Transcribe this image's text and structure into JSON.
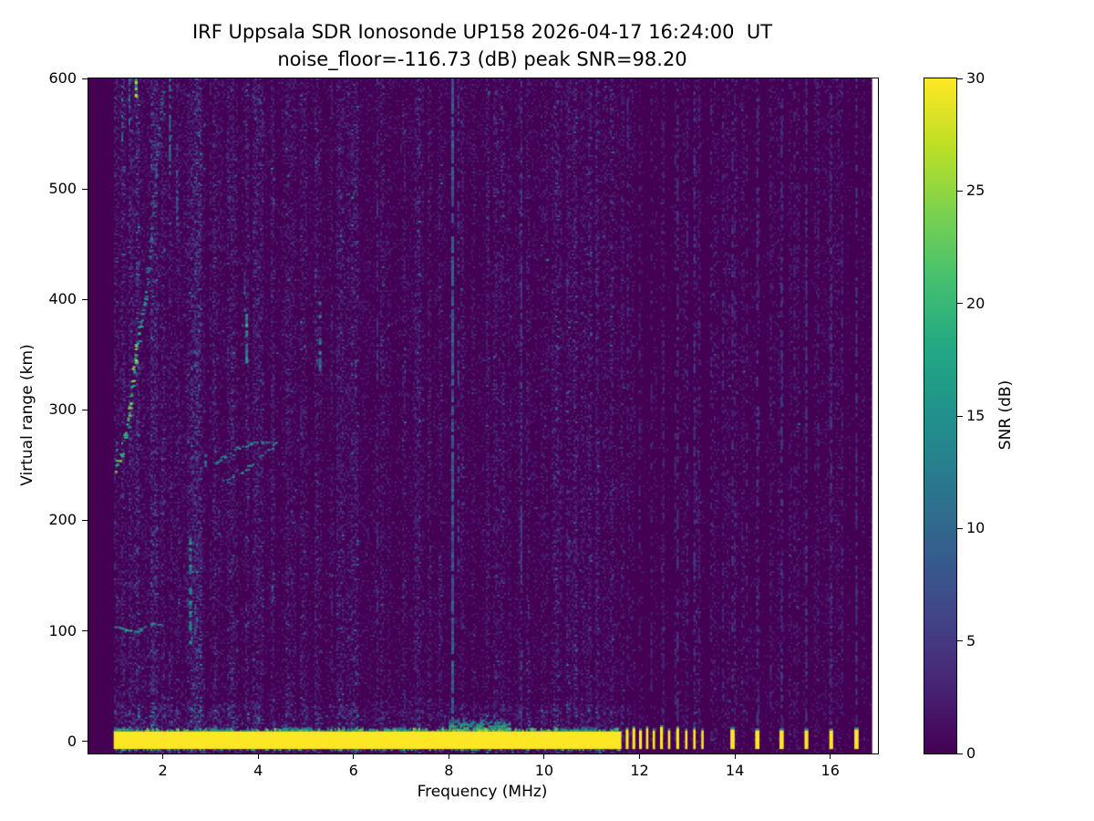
{
  "chart_data": {
    "type": "heatmap",
    "title": "IRF Uppsala SDR Ionosonde UP158 2026-04-17 16:24:00  UT",
    "subtitle": "noise_floor=-116.73 (dB) peak SNR=98.20",
    "station": "UP158",
    "timestamp_ut": "2026-04-17 16:24:00",
    "noise_floor_db": -116.73,
    "peak_snr_db": 98.2,
    "xlabel": "Frequency (MHz)",
    "ylabel": "Virtual range (km)",
    "xlim": [
      0.44,
      17.0
    ],
    "ylim": [
      -11,
      600
    ],
    "xticks": [
      2,
      4,
      6,
      8,
      10,
      12,
      14,
      16
    ],
    "yticks": [
      0,
      100,
      200,
      300,
      400,
      500,
      600
    ],
    "grid": false,
    "colorbar": {
      "label": "SNR (dB)",
      "min": 0,
      "max": 30,
      "ticks": [
        0,
        5,
        10,
        15,
        20,
        25,
        30
      ],
      "colormap": "viridis"
    },
    "colormap_stops": [
      [
        0.0,
        "#440154"
      ],
      [
        0.1,
        "#482475"
      ],
      [
        0.2,
        "#414487"
      ],
      [
        0.3,
        "#355f8d"
      ],
      [
        0.4,
        "#2a788e"
      ],
      [
        0.5,
        "#21918c"
      ],
      [
        0.6,
        "#22a884"
      ],
      [
        0.7,
        "#44bf70"
      ],
      [
        0.8,
        "#7ad151"
      ],
      [
        0.9,
        "#bddf26"
      ],
      [
        1.0,
        "#fde725"
      ]
    ],
    "data_extent": {
      "f_start": 0.97,
      "f_end": 16.88
    },
    "background_snr": 0,
    "noise": {
      "x_step": 2,
      "y_step": 2,
      "col_block": 4,
      "mean_snr": 0.9,
      "threshold": 1.0,
      "low_freq_boost": 1.5,
      "low_freq_cutoff": 2.8,
      "high_freq_cutoff": 11.65,
      "high_freq_factor": 0.55,
      "near_band_boost": 1.7,
      "near_band_km": 35,
      "max_snr": 13,
      "seed": 42
    },
    "ground_band": {
      "f_start": 0.97,
      "f_end": 11.62,
      "km_bottom": -7,
      "km_top": 9,
      "snr": 30
    },
    "ground_halos": [
      {
        "f_start": 8.0,
        "f_end": 9.3,
        "km_top": 21,
        "snr": 26
      },
      {
        "f_start": 4.4,
        "f_end": 5.1,
        "km_top": 13,
        "snr": 22
      },
      {
        "f_start": 6.6,
        "f_end": 7.2,
        "km_top": 12,
        "snr": 20
      },
      {
        "f_start": 2.9,
        "f_end": 3.4,
        "km_top": 12,
        "snr": 18
      },
      {
        "f_start": 10.35,
        "f_end": 11.05,
        "km_top": 12,
        "snr": 18
      },
      {
        "f_start": 0.97,
        "f_end": 1.6,
        "km_top": 12,
        "snr": 18
      }
    ],
    "pulse_km_bottom": -7,
    "pulse_snr": 30,
    "ground_pulses": [
      {
        "f": 11.74,
        "width": 0.06,
        "km_top": 11
      },
      {
        "f": 11.88,
        "width": 0.06,
        "km_top": 12
      },
      {
        "f": 12.02,
        "width": 0.06,
        "km_top": 10
      },
      {
        "f": 12.16,
        "width": 0.05,
        "km_top": 12
      },
      {
        "f": 12.3,
        "width": 0.05,
        "km_top": 10
      },
      {
        "f": 12.46,
        "width": 0.06,
        "km_top": 13
      },
      {
        "f": 12.62,
        "width": 0.05,
        "km_top": 10
      },
      {
        "f": 12.8,
        "width": 0.06,
        "km_top": 12
      },
      {
        "f": 12.98,
        "width": 0.05,
        "km_top": 10
      },
      {
        "f": 13.15,
        "width": 0.05,
        "km_top": 11
      },
      {
        "f": 13.32,
        "width": 0.05,
        "km_top": 10
      },
      {
        "f": 13.95,
        "width": 0.09,
        "km_top": 11
      },
      {
        "f": 14.47,
        "width": 0.09,
        "km_top": 10
      },
      {
        "f": 14.98,
        "width": 0.09,
        "km_top": 10
      },
      {
        "f": 15.5,
        "width": 0.08,
        "km_top": 10
      },
      {
        "f": 16.02,
        "width": 0.08,
        "km_top": 10
      },
      {
        "f": 16.55,
        "width": 0.09,
        "km_top": 11
      }
    ],
    "traces": [
      {
        "name": "F-layer echo",
        "dash_prob": 0.75,
        "spread_km": [
          8,
          8,
          9,
          10,
          12,
          14,
          14,
          13,
          10,
          8,
          7,
          7,
          6,
          6,
          6,
          6,
          6,
          6
        ],
        "points": [
          [
            0.98,
            248,
            20
          ],
          [
            1.04,
            253,
            21
          ],
          [
            1.1,
            260,
            20
          ],
          [
            1.17,
            270,
            19
          ],
          [
            1.24,
            285,
            20
          ],
          [
            1.3,
            306,
            22
          ],
          [
            1.36,
            330,
            22
          ],
          [
            1.42,
            352,
            21
          ],
          [
            1.48,
            368,
            18
          ],
          [
            1.54,
            382,
            16
          ],
          [
            1.6,
            398,
            14
          ],
          [
            1.66,
            418,
            13
          ],
          [
            1.72,
            445,
            11
          ],
          [
            1.78,
            478,
            10
          ],
          [
            1.84,
            515,
            9
          ],
          [
            1.9,
            550,
            9
          ],
          [
            1.95,
            578,
            8
          ],
          [
            1.99,
            598,
            8
          ]
        ]
      },
      {
        "name": "Es upper arc",
        "dash_prob": 0.7,
        "spread_km": 3,
        "points": [
          [
            3.08,
            252,
            12
          ],
          [
            3.25,
            258,
            13
          ],
          [
            3.45,
            264,
            14
          ],
          [
            3.65,
            268,
            14
          ],
          [
            3.85,
            270,
            13
          ],
          [
            4.05,
            271,
            13
          ],
          [
            4.25,
            271,
            12
          ],
          [
            4.4,
            270,
            12
          ]
        ]
      },
      {
        "name": "Es lower arc",
        "dash_prob": 0.7,
        "spread_km": 3,
        "points": [
          [
            3.2,
            236,
            12
          ],
          [
            3.38,
            238,
            13
          ],
          [
            3.55,
            242,
            13
          ],
          [
            3.75,
            248,
            13
          ],
          [
            3.95,
            256,
            13
          ],
          [
            4.15,
            263,
            12
          ],
          [
            4.35,
            268,
            12
          ]
        ]
      },
      {
        "name": "Es tail",
        "dash_prob": 0.45,
        "spread_km": 2.5,
        "points": [
          [
            4.4,
            270,
            10
          ],
          [
            4.6,
            272,
            9
          ],
          [
            4.8,
            274,
            9
          ],
          [
            4.95,
            275,
            8
          ]
        ]
      },
      {
        "name": "Es layer 105 km",
        "dash_prob": 0.8,
        "spread_km": 2.5,
        "points": [
          [
            1.0,
            104,
            14
          ],
          [
            1.12,
            103,
            14
          ],
          [
            1.25,
            100,
            15
          ],
          [
            1.38,
            99,
            14
          ],
          [
            1.52,
            102,
            14
          ],
          [
            1.66,
            106,
            13
          ],
          [
            1.8,
            107,
            13
          ],
          [
            1.95,
            107,
            12
          ]
        ]
      }
    ],
    "rfi_columns": [
      {
        "f": 1.15,
        "km0": 540,
        "km1": 600,
        "snr": 11,
        "prob": 0.55,
        "w": 2
      },
      {
        "f": 1.3,
        "km0": 555,
        "km1": 600,
        "snr": 9,
        "prob": 0.5,
        "w": 2
      },
      {
        "f": 1.44,
        "km0": 583,
        "km1": 600,
        "snr": 22,
        "prob": 0.85,
        "w": 3
      },
      {
        "f": 2.15,
        "km0": 510,
        "km1": 600,
        "snr": 10,
        "prob": 0.5,
        "w": 2
      },
      {
        "f": 2.3,
        "km0": 460,
        "km1": 545,
        "snr": 9,
        "prob": 0.45,
        "w": 2
      },
      {
        "f": 2.58,
        "km0": 88,
        "km1": 182,
        "snr": 13,
        "prob": 0.6,
        "w": 3
      },
      {
        "f": 2.9,
        "km0": 248,
        "km1": 260,
        "snr": 12,
        "prob": 0.9,
        "w": 3
      },
      {
        "f": 3.0,
        "km0": 0,
        "km1": 600,
        "snr": 3.5,
        "prob": 0.26,
        "w": 2
      },
      {
        "f": 3.76,
        "km0": 342,
        "km1": 386,
        "snr": 15,
        "prob": 0.75,
        "w": 3
      },
      {
        "f": 3.72,
        "km0": 386,
        "km1": 428,
        "snr": 8,
        "prob": 0.4,
        "w": 2
      },
      {
        "f": 4.3,
        "km0": 120,
        "km1": 146,
        "snr": 10,
        "prob": 0.55,
        "w": 2
      },
      {
        "f": 5.3,
        "km0": 335,
        "km1": 400,
        "snr": 12,
        "prob": 0.6,
        "w": 3
      },
      {
        "f": 5.55,
        "km0": 0,
        "km1": 600,
        "snr": 3,
        "prob": 0.2,
        "w": 2
      },
      {
        "f": 6.5,
        "km0": 0,
        "km1": 600,
        "snr": 4,
        "prob": 0.3,
        "w": 2
      },
      {
        "f": 7.3,
        "km0": 0,
        "km1": 600,
        "snr": 3.5,
        "prob": 0.24,
        "w": 2
      },
      {
        "f": 8.08,
        "km0": -5,
        "km1": 600,
        "snr": 8.5,
        "prob": 0.85,
        "w": 3
      },
      {
        "f": 8.2,
        "km0": 150,
        "km1": 600,
        "snr": 5.5,
        "prob": 0.45,
        "w": 2
      },
      {
        "f": 9.0,
        "km0": 0,
        "km1": 600,
        "snr": 3.5,
        "prob": 0.24,
        "w": 2
      },
      {
        "f": 9.52,
        "km0": -5,
        "km1": 600,
        "snr": 5.5,
        "prob": 0.5,
        "w": 2
      },
      {
        "f": 10.35,
        "km0": 0,
        "km1": 600,
        "snr": 3,
        "prob": 0.2,
        "w": 2
      },
      {
        "f": 11.1,
        "km0": 0,
        "km1": 600,
        "snr": 3,
        "prob": 0.2,
        "w": 2
      }
    ],
    "periodic_rfi": {
      "f_start": 11.75,
      "f_end": 16.25,
      "spacing": 0.25,
      "snr": 3.5,
      "prob": 0.3,
      "w": 2,
      "strong_lines": [
        12.8,
        13.15,
        13.95,
        14.47,
        14.98,
        15.5,
        16.02,
        16.55
      ],
      "strong_snr": 5,
      "strong_prob": 0.45
    }
  }
}
